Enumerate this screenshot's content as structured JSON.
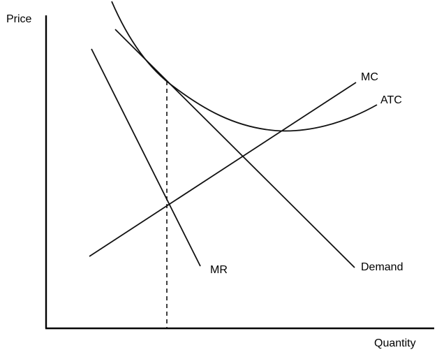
{
  "diagram": {
    "labels": {
      "y_axis": "Price",
      "x_axis": "Quantity",
      "mc": "MC",
      "atc": "ATC",
      "mr": "MR",
      "demand": "Demand"
    }
  }
}
